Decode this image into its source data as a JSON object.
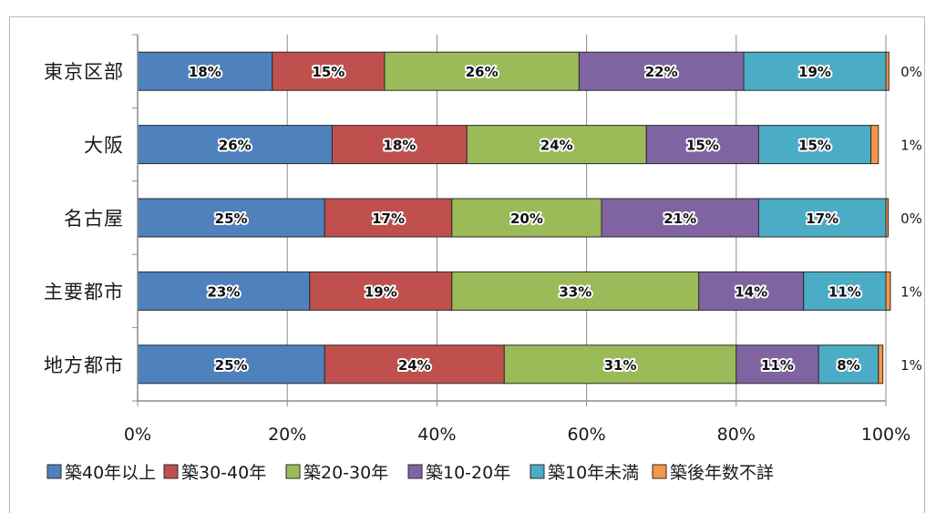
{
  "chart_data": {
    "type": "bar",
    "orientation": "horizontal",
    "stacked": true,
    "categories": [
      "東京区部",
      "大阪",
      "名古屋",
      "主要都市",
      "地方都市"
    ],
    "series": [
      {
        "name": "築40年以上",
        "color": "#4f81bd",
        "values": [
          18,
          26,
          25,
          23,
          25
        ],
        "labels": [
          "18%",
          "26%",
          "25%",
          "23%",
          "25%"
        ]
      },
      {
        "name": "築30-40年",
        "color": "#c0504d",
        "values": [
          15,
          18,
          17,
          19,
          24
        ],
        "labels": [
          "15%",
          "18%",
          "17%",
          "19%",
          "24%"
        ]
      },
      {
        "name": "築20-30年",
        "color": "#9bbb59",
        "values": [
          26,
          24,
          20,
          33,
          31
        ],
        "labels": [
          "26%",
          "24%",
          "20%",
          "33%",
          "31%"
        ]
      },
      {
        "name": "築10-20年",
        "color": "#8064a2",
        "values": [
          22,
          15,
          21,
          14,
          11
        ],
        "labels": [
          "22%",
          "15%",
          "21%",
          "14%",
          "11%"
        ]
      },
      {
        "name": "築10年未満",
        "color": "#4bacc6",
        "values": [
          19,
          15,
          17,
          11,
          8
        ],
        "labels": [
          "19%",
          "15%",
          "17%",
          "11%",
          "8%"
        ]
      },
      {
        "name": "築後年数不詳",
        "color": "#f79646",
        "values": [
          0.4,
          1,
          0.3,
          0.6,
          0.6
        ],
        "labels": [
          "0%",
          "1%",
          "0%",
          "1%",
          "1%"
        ]
      }
    ],
    "xlim": [
      0,
      100
    ],
    "x_ticks": [
      "0%",
      "20%",
      "40%",
      "60%",
      "80%",
      "100%"
    ],
    "grid": true,
    "legend_position": "bottom"
  }
}
